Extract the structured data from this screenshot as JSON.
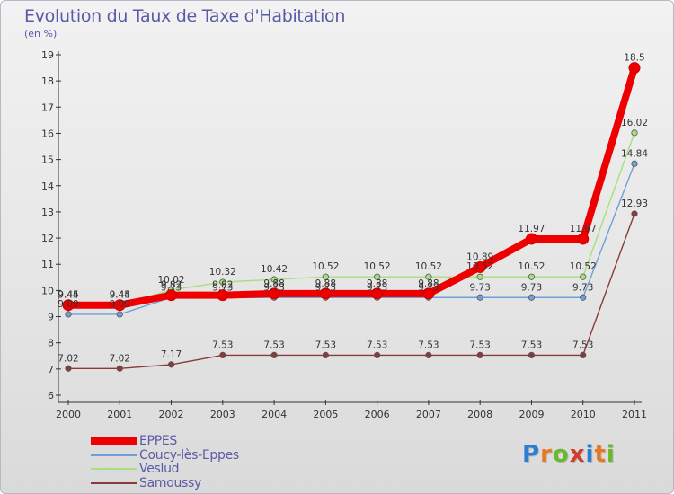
{
  "header": {
    "title": "Evolution du Taux de Taxe d'Habitation",
    "unit": "(en %)"
  },
  "logo": {
    "text": "Proxiti",
    "letters": [
      "P",
      "r",
      "o",
      "x",
      "i",
      "t",
      "i"
    ],
    "colors": [
      "#2a7fd4",
      "#e87722",
      "#6ab82e",
      "#d23c2e",
      "#2a7fd4",
      "#e87722",
      "#6ab82e"
    ]
  },
  "chart_data": {
    "type": "line",
    "title": "Evolution du Taux de Taxe d'Habitation",
    "ylabel": "(en %)",
    "xlabel": "",
    "x": [
      "2000",
      "2001",
      "2002",
      "2003",
      "2004",
      "2005",
      "2006",
      "2007",
      "2008",
      "2009",
      "2010",
      "2011"
    ],
    "ylim": [
      6,
      19
    ],
    "yticks": [
      6,
      7,
      8,
      9,
      10,
      11,
      12,
      13,
      14,
      15,
      16,
      17,
      18,
      19
    ],
    "grid": false,
    "legend_position": "bottom-left",
    "series": [
      {
        "name": "Samoussy",
        "color": "#8b3a3a",
        "values": [
          7.02,
          7.02,
          7.17,
          7.53,
          7.53,
          7.53,
          7.53,
          7.53,
          7.53,
          7.53,
          7.53,
          12.93
        ],
        "labels": [
          "7.02",
          "7.02",
          "7.17",
          "7.53",
          "7.53",
          "7.53",
          "7.53",
          "7.53",
          "7.53",
          "7.53",
          "7.53",
          "12.93"
        ]
      },
      {
        "name": "Coucy-lès-Eppes",
        "color": "#6f9fd8",
        "values": [
          9.09,
          9.09,
          9.73,
          9.73,
          9.73,
          9.73,
          9.73,
          9.73,
          9.73,
          9.73,
          9.73,
          14.84
        ],
        "labels": [
          "9.09",
          "9.09",
          "9.73",
          "9.73",
          "9.73",
          "9.73",
          "9.73",
          "9.73",
          "9.73",
          "9.73",
          "9.73",
          "14.84"
        ]
      },
      {
        "name": "Veslud",
        "color": "#a6e07a",
        "values": [
          9.45,
          9.45,
          10.02,
          10.32,
          10.42,
          10.52,
          10.52,
          10.52,
          10.52,
          10.52,
          10.52,
          16.02
        ],
        "labels": [
          "9.45",
          "9.45",
          "10.02",
          "10.32",
          "10.42",
          "10.52",
          "10.52",
          "10.52",
          "10.52",
          "10.52",
          "10.52",
          "16.02"
        ]
      },
      {
        "name": "EPPES",
        "color": "#ee0000",
        "values": [
          9.44,
          9.44,
          9.82,
          9.82,
          9.88,
          9.88,
          9.88,
          9.88,
          10.89,
          11.97,
          11.97,
          18.5
        ],
        "labels": [
          "9.44",
          "9.44",
          "9.82",
          "9.82",
          "9.88",
          "9.88",
          "9.88",
          "9.88",
          "10.89",
          "11.97",
          "11.97",
          "18.5"
        ]
      }
    ],
    "legend": [
      {
        "name": "EPPES",
        "color": "#ee0000",
        "weight": "thick"
      },
      {
        "name": "Coucy-lès-Eppes",
        "color": "#6f9fd8",
        "weight": "thin"
      },
      {
        "name": "Veslud",
        "color": "#a6e07a",
        "weight": "thin"
      },
      {
        "name": "Samoussy",
        "color": "#8b3a3a",
        "weight": "thin"
      }
    ]
  }
}
